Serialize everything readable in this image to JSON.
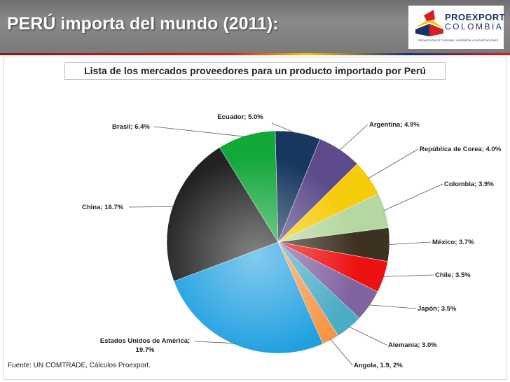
{
  "header": {
    "title": "PERÚ importa del mundo (2011):"
  },
  "logo": {
    "name": "PROEXPORT",
    "sub": "COLOMBIA",
    "tagline": "PROMOCIÓN DE TURISMO, INVERSIÓN Y EXPORTACIONES"
  },
  "chart_data": {
    "type": "pie",
    "title": "Lista de los mercados proveedores para un producto importado por Perú",
    "slices": [
      {
        "label": "Ecuador; 5.0%",
        "value": 5.0,
        "color": "#17375e"
      },
      {
        "label": "Argentina; 4.9%",
        "value": 4.9,
        "color": "#5e4b8b"
      },
      {
        "label": "República de Corea; 4.0%",
        "value": 4.0,
        "color": "#f5cc0a"
      },
      {
        "label": "Colombia; 3.9%",
        "value": 3.9,
        "color": "#b6d7a0"
      },
      {
        "label": "México; 3.7%",
        "value": 3.7,
        "color": "#3d3221"
      },
      {
        "label": "Chile; 3.5%",
        "value": 3.5,
        "color": "#ee1111"
      },
      {
        "label": "Japón; 3.5%",
        "value": 3.5,
        "color": "#8064a2"
      },
      {
        "label": "Alemania; 3.0%",
        "value": 3.0,
        "color": "#4bacc6"
      },
      {
        "label": "Angola, 1.9, 2%",
        "value": 1.9,
        "color": "#f79646"
      },
      {
        "label": "Estados Unidos de América;",
        "label2": "19.7%",
        "value": 19.7,
        "color": "#1fa0e0"
      },
      {
        "label": "China; 16.7%",
        "value": 16.7,
        "color": "#222222"
      },
      {
        "label": "Brasil; 6.4%",
        "value": 6.4,
        "color": "#12a83a"
      }
    ]
  },
  "source": "Fuente:  UN COMTRADE,  Cálculos Proexport."
}
